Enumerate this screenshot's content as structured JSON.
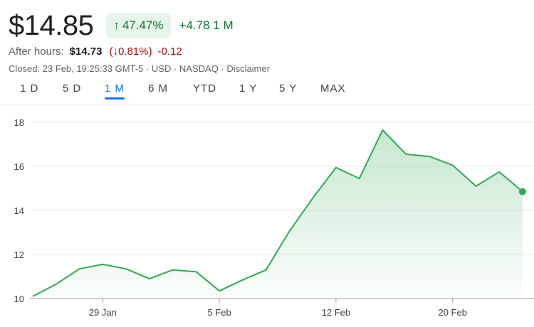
{
  "quote": {
    "price": "$14.85",
    "change_pct": "47.47%",
    "change_abs": "+4.78",
    "period_label": "1 M",
    "after_hours_label": "After hours:",
    "after_hours_price": "$14.73",
    "after_hours_pct": "0.81%)",
    "after_hours_pct_open": "(",
    "after_hours_abs": "-0.12",
    "closed_info": [
      "Closed: 23 Feb, 19:25:33 GMT-5",
      "USD",
      "NASDAQ",
      "Disclaimer"
    ]
  },
  "icons": {
    "up": "arrow-up-icon",
    "down": "arrow-down-icon"
  },
  "colors": {
    "positive": "#137333",
    "negative": "#a50e0e",
    "line": "#34a853",
    "accent": "#1a73e8"
  },
  "tabs": [
    {
      "label": "1 D",
      "active": false
    },
    {
      "label": "5 D",
      "active": false
    },
    {
      "label": "1 M",
      "active": true
    },
    {
      "label": "6 M",
      "active": false
    },
    {
      "label": "YTD",
      "active": false
    },
    {
      "label": "1 Y",
      "active": false
    },
    {
      "label": "5 Y",
      "active": false
    },
    {
      "label": "MAX",
      "active": false
    }
  ],
  "chart_data": {
    "type": "area",
    "ylim": [
      10,
      18
    ],
    "yticks": [
      10,
      12,
      14,
      16,
      18
    ],
    "xtick_labels": [
      "29 Jan",
      "5 Feb",
      "12 Feb",
      "20 Feb"
    ],
    "grid": true,
    "series": [
      {
        "values": [
          {
            "date": "2024-01-24",
            "value": 10.1
          },
          {
            "date": "2024-01-25",
            "value": 10.65
          },
          {
            "date": "2024-01-26",
            "value": 11.35
          },
          {
            "date": "2024-01-29",
            "value": 11.55
          },
          {
            "date": "2024-01-30",
            "value": 11.35
          },
          {
            "date": "2024-01-31",
            "value": 10.9
          },
          {
            "date": "2024-02-01",
            "value": 11.3
          },
          {
            "date": "2024-02-02",
            "value": 11.22
          },
          {
            "date": "2024-02-05",
            "value": 10.35
          },
          {
            "date": "2024-02-06",
            "value": 10.85
          },
          {
            "date": "2024-02-07",
            "value": 11.3
          },
          {
            "date": "2024-02-08",
            "value": 13.05
          },
          {
            "date": "2024-02-09",
            "value": 14.55
          },
          {
            "date": "2024-02-12",
            "value": 15.95
          },
          {
            "date": "2024-02-13",
            "value": 15.45
          },
          {
            "date": "2024-02-14",
            "value": 17.65
          },
          {
            "date": "2024-02-15",
            "value": 16.55
          },
          {
            "date": "2024-02-16",
            "value": 16.45
          },
          {
            "date": "2024-02-20",
            "value": 16.05
          },
          {
            "date": "2024-02-21",
            "value": 15.1
          },
          {
            "date": "2024-02-22",
            "value": 15.75
          },
          {
            "date": "2024-02-23",
            "value": 14.85
          }
        ]
      }
    ]
  }
}
